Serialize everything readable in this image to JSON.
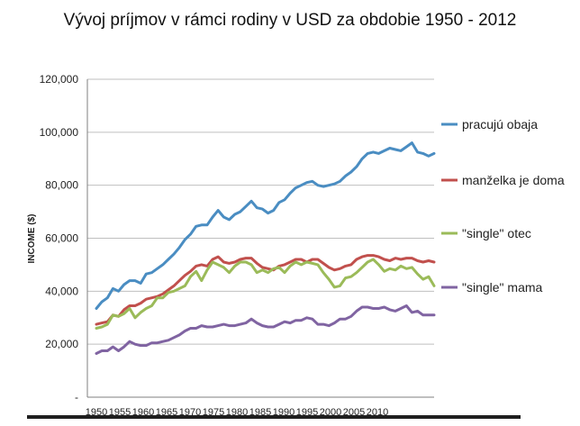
{
  "chart_data": {
    "type": "line",
    "title": "Vývoj príjmov v rámci rodiny v USD za obdobie 1950 - 2012",
    "xlabel": "",
    "ylabel": "INCOME ($)",
    "ylim": [
      0,
      120000
    ],
    "xlim": [
      1950,
      2011
    ],
    "yticks": [
      0,
      20000,
      40000,
      60000,
      80000,
      100000,
      120000
    ],
    "ytick_labels": [
      "-",
      "20,000",
      "40,000",
      "60,000",
      "80,000",
      "100,000",
      "120,000"
    ],
    "xticks": [
      1950,
      1955,
      1960,
      1965,
      1970,
      1975,
      1980,
      1985,
      1990,
      1995,
      2000,
      2005,
      2010
    ],
    "xtick_labels": [
      "1950",
      "1955",
      "1960",
      "1965",
      "1970",
      "1975",
      "1980",
      "1985",
      "1990",
      "1995",
      "2000",
      "2005",
      "2010"
    ],
    "grid": true,
    "legend_position": "right",
    "x": [
      1950,
      1951,
      1952,
      1953,
      1954,
      1955,
      1956,
      1957,
      1958,
      1959,
      1960,
      1961,
      1962,
      1963,
      1964,
      1965,
      1966,
      1967,
      1968,
      1969,
      1970,
      1971,
      1972,
      1973,
      1974,
      1975,
      1976,
      1977,
      1978,
      1979,
      1980,
      1981,
      1982,
      1983,
      1984,
      1985,
      1986,
      1987,
      1988,
      1989,
      1990,
      1991,
      1992,
      1993,
      1994,
      1995,
      1996,
      1997,
      1998,
      1999,
      2000,
      2001,
      2002,
      2003,
      2004,
      2005,
      2006,
      2007,
      2008,
      2009,
      2010,
      2011
    ],
    "series": [
      {
        "name": "pracujú obaja",
        "color": "#4a8dc2",
        "values": [
          33500,
          36000,
          37500,
          41000,
          40000,
          42500,
          44000,
          44000,
          43000,
          46500,
          47000,
          48500,
          50000,
          52000,
          54000,
          56500,
          59500,
          61500,
          64500,
          65000,
          65000,
          68000,
          70500,
          68000,
          67000,
          69000,
          70000,
          72000,
          74000,
          71500,
          71000,
          69500,
          70500,
          73500,
          74500,
          77000,
          79000,
          80000,
          81000,
          81500,
          80000,
          79500,
          80000,
          80500,
          81500,
          83500,
          85000,
          87000,
          90000,
          92000,
          92500,
          92000,
          93000,
          94000,
          93500,
          93000,
          94500,
          96000,
          92500,
          92000,
          91000,
          92000
        ]
      },
      {
        "name": "manželka je doma",
        "color": "#c1504d",
        "values": [
          27500,
          28000,
          28500,
          31000,
          30500,
          33000,
          34500,
          34500,
          35500,
          37000,
          37500,
          38000,
          39000,
          40500,
          42000,
          44000,
          46000,
          47500,
          49500,
          50000,
          49500,
          52000,
          53000,
          51000,
          50500,
          51000,
          52000,
          52500,
          52500,
          50500,
          49000,
          48500,
          48000,
          49500,
          50000,
          51000,
          52000,
          52000,
          51000,
          52000,
          52000,
          50500,
          49000,
          48000,
          48500,
          49500,
          50000,
          52000,
          53000,
          53500,
          53500,
          53000,
          52000,
          51500,
          52500,
          52000,
          52500,
          52500,
          51500,
          51000,
          51500,
          51000
        ]
      },
      {
        "name": "\"single\" otec",
        "color": "#9bbb59",
        "values": [
          26000,
          26500,
          27500,
          31000,
          30500,
          31500,
          33500,
          30000,
          32000,
          33500,
          34500,
          37500,
          37500,
          39500,
          40000,
          41000,
          42000,
          45500,
          47500,
          44000,
          48000,
          51000,
          50000,
          49000,
          47000,
          49500,
          51000,
          51000,
          50000,
          47000,
          48000,
          47000,
          48500,
          49000,
          47000,
          49500,
          51000,
          50000,
          51000,
          50500,
          50000,
          47000,
          44500,
          41500,
          42000,
          45000,
          45500,
          47000,
          49000,
          51000,
          52000,
          50000,
          47500,
          48500,
          48000,
          49500,
          48500,
          49000,
          46500,
          44500,
          45500,
          42000
        ]
      },
      {
        "name": "\"single\" mama",
        "color": "#8064a2",
        "values": [
          16500,
          17500,
          17500,
          19000,
          17500,
          19000,
          21000,
          20000,
          19500,
          19500,
          20500,
          20500,
          21000,
          21500,
          22500,
          23500,
          25000,
          26000,
          26000,
          27000,
          26500,
          26500,
          27000,
          27500,
          27000,
          27000,
          27500,
          28000,
          29500,
          28000,
          27000,
          26500,
          26500,
          27500,
          28500,
          28000,
          29000,
          29000,
          30000,
          29500,
          27500,
          27500,
          27000,
          28000,
          29500,
          29500,
          30500,
          32500,
          34000,
          34000,
          33500,
          33500,
          34000,
          33000,
          32500,
          33500,
          34500,
          32000,
          32500,
          31000,
          31000,
          31000
        ]
      }
    ]
  }
}
